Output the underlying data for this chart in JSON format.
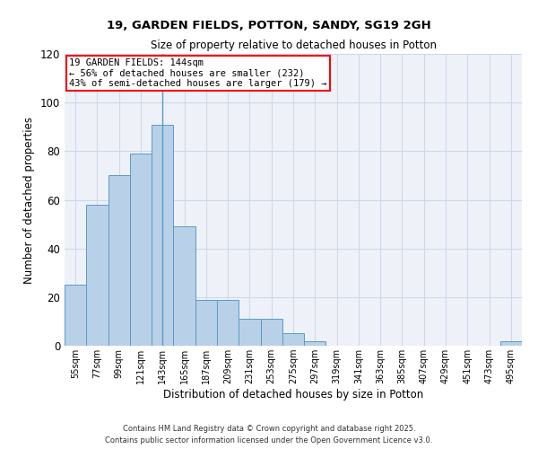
{
  "title1": "19, GARDEN FIELDS, POTTON, SANDY, SG19 2GH",
  "title2": "Size of property relative to detached houses in Potton",
  "xlabel": "Distribution of detached houses by size in Potton",
  "ylabel": "Number of detached properties",
  "categories": [
    "55sqm",
    "77sqm",
    "99sqm",
    "121sqm",
    "143sqm",
    "165sqm",
    "187sqm",
    "209sqm",
    "231sqm",
    "253sqm",
    "275sqm",
    "297sqm",
    "319sqm",
    "341sqm",
    "363sqm",
    "385sqm",
    "407sqm",
    "429sqm",
    "451sqm",
    "473sqm",
    "495sqm"
  ],
  "values": [
    25,
    58,
    70,
    79,
    91,
    49,
    19,
    19,
    11,
    11,
    5,
    2,
    0,
    0,
    0,
    0,
    0,
    0,
    0,
    0,
    2
  ],
  "bar_color": "#b8d0e8",
  "bar_edge_color": "#5a9ac8",
  "annotation_box_text": "19 GARDEN FIELDS: 144sqm\n← 56% of detached houses are smaller (232)\n43% of semi-detached houses are larger (179) →",
  "vline_index": 4,
  "vline_color": "#5a9ac8",
  "ylim": [
    0,
    120
  ],
  "yticks": [
    0,
    20,
    40,
    60,
    80,
    100,
    120
  ],
  "grid_color": "#ccd8ea",
  "bg_color": "#eef2f8",
  "footer": "Contains HM Land Registry data © Crown copyright and database right 2025.\nContains public sector information licensed under the Open Government Licence v3.0."
}
